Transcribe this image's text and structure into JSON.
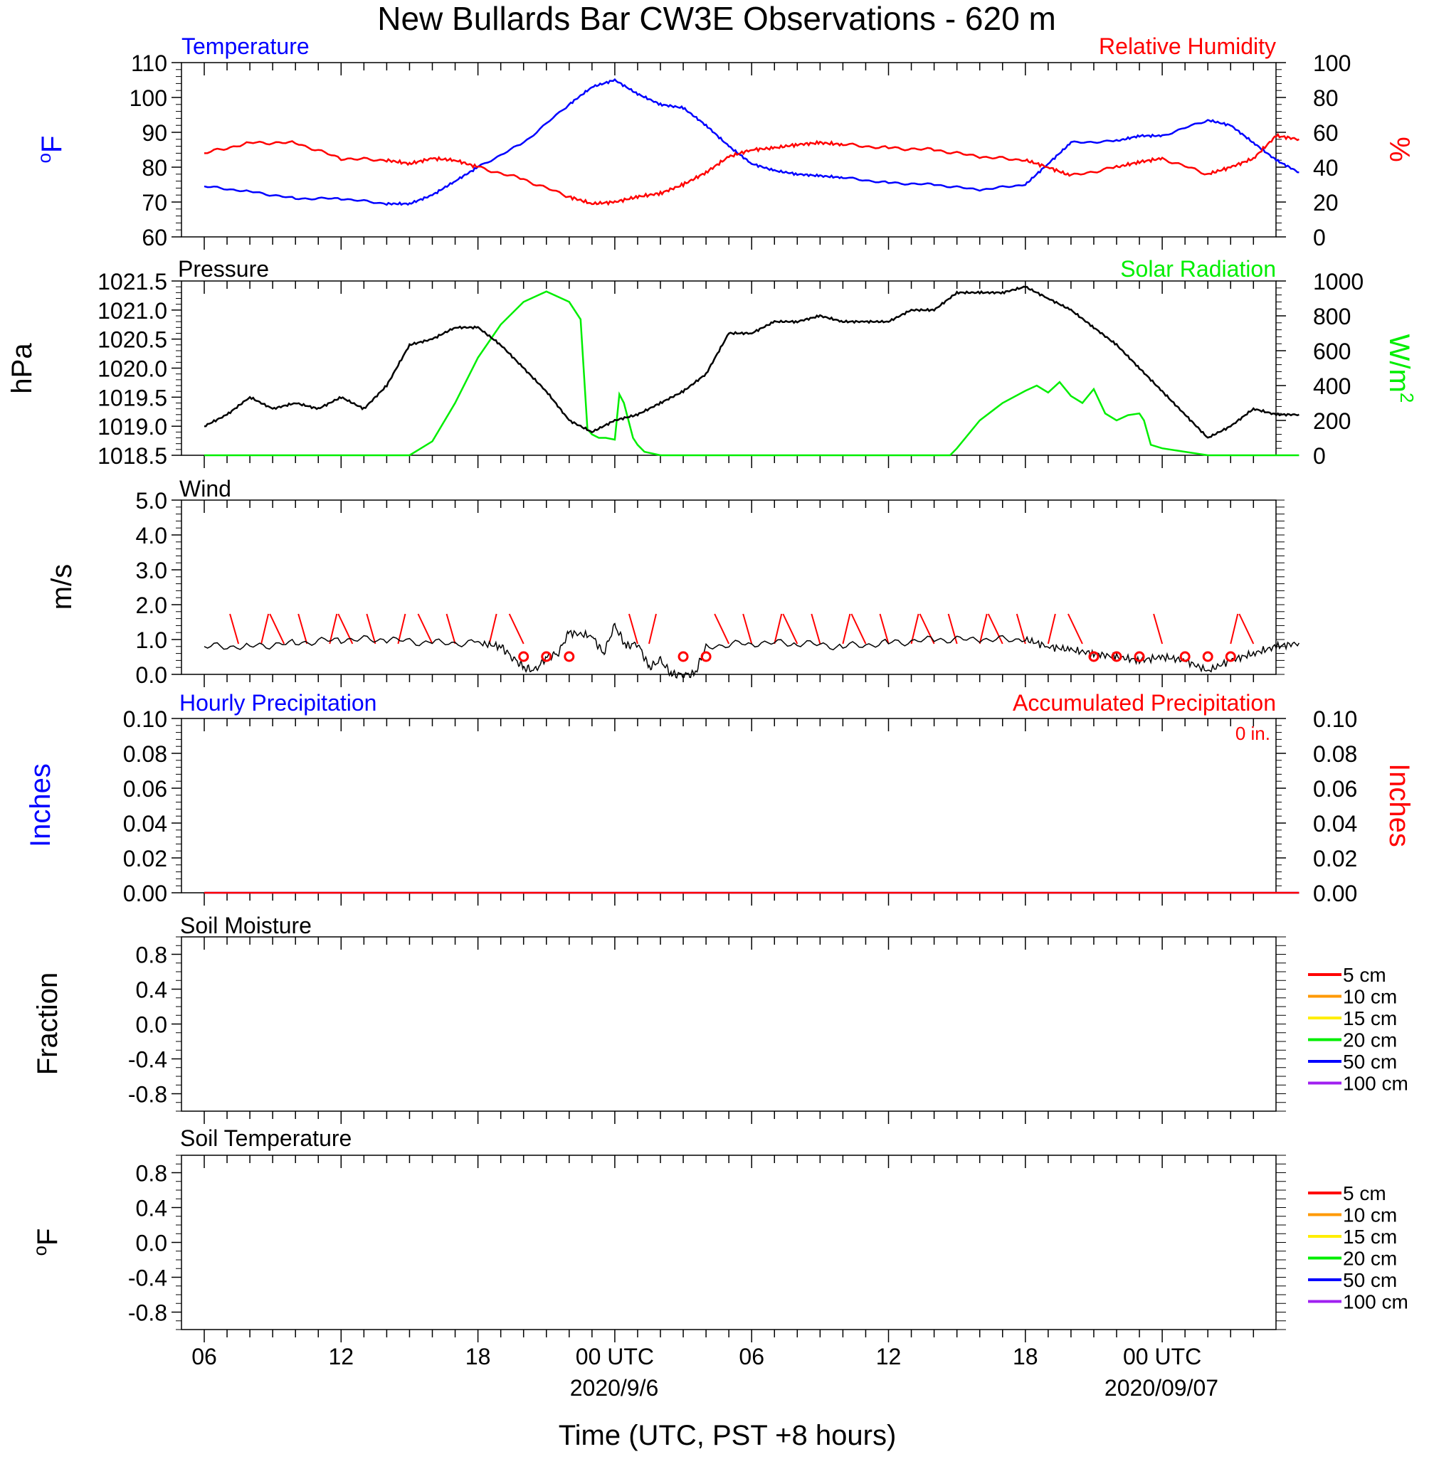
{
  "title": "New Bullards Bar CW3E Observations - 620 m",
  "x_axis": {
    "title": "Time (UTC, PST +8 hours)",
    "ticks": [
      "06",
      "12",
      "18",
      "00 UTC",
      "06",
      "12",
      "18",
      "00 UTC"
    ],
    "dates": [
      "2020/9/6",
      "2020/09/07"
    ]
  },
  "colors": {
    "blue": "#0000ff",
    "red": "#ff0000",
    "black": "#000000",
    "green": "#00ee00",
    "orange": "#ff9900",
    "yellow": "#ffee00",
    "purple": "#a020f0"
  },
  "chart_data": [
    {
      "type": "line",
      "panel": "temperature_rh",
      "left_title": "Temperature",
      "right_title": "Relative Humidity",
      "ylabel": "oF",
      "y2label": "%",
      "ylim": [
        60,
        110
      ],
      "y2lim": [
        0,
        100
      ],
      "y_ticks": [
        "110",
        "100",
        "90",
        "80",
        "70",
        "60"
      ],
      "y2_ticks": [
        "100",
        "80",
        "60",
        "40",
        "20",
        "0"
      ],
      "x_hours": [
        0,
        2,
        4,
        6,
        8,
        9,
        10,
        11,
        12,
        14,
        16,
        17,
        18,
        19,
        20,
        21,
        22,
        23,
        24,
        25,
        26,
        27,
        28,
        30,
        32,
        34,
        36,
        37,
        38,
        40,
        41,
        42,
        44,
        45,
        46,
        47,
        48
      ],
      "series": [
        {
          "name": "Temperature",
          "color": "#0000ff",
          "values": [
            74.5,
            73,
            71,
            71,
            69.5,
            69.5,
            72,
            76,
            80,
            87,
            98,
            103,
            105,
            101,
            98,
            97,
            92,
            86,
            81,
            79,
            78,
            77.5,
            77,
            75.5,
            75,
            73.5,
            75,
            81,
            87,
            87.5,
            89,
            89,
            93.5,
            92,
            87,
            82,
            78.5
          ]
        },
        {
          "name": "Relative Humidity",
          "color": "#ff0000",
          "values": [
            48,
            54,
            54,
            45,
            44,
            42,
            45,
            44,
            40,
            33,
            23,
            19,
            20,
            23,
            25,
            30,
            37,
            46,
            50,
            51,
            53,
            54,
            53,
            51,
            50,
            46,
            44,
            40,
            35,
            40,
            43,
            45,
            36,
            40,
            45,
            58,
            56
          ]
        }
      ]
    },
    {
      "type": "line",
      "panel": "pressure_solar",
      "left_title": "Pressure",
      "right_title": "Solar Radiation",
      "ylabel": "hPa",
      "y2label": "W/m2",
      "ylim": [
        1018.5,
        1021.5
      ],
      "y2lim": [
        0,
        1000
      ],
      "y_ticks": [
        "1021.5",
        "1021.0",
        "1020.5",
        "1020.0",
        "1019.5",
        "1019.0",
        "1018.5"
      ],
      "y2_ticks": [
        "1000",
        "800",
        "600",
        "400",
        "200",
        "0"
      ],
      "series": [
        {
          "name": "Pressure",
          "color": "#000000",
          "x_hours": [
            0,
            1,
            2,
            3,
            4,
            5,
            6,
            7,
            8,
            9,
            10,
            11,
            12,
            13,
            14,
            15,
            16,
            17,
            18,
            19,
            20,
            21,
            22,
            23,
            24,
            25,
            26,
            27,
            28,
            29,
            30,
            31,
            32,
            33,
            34,
            35,
            36,
            37,
            38,
            39,
            40,
            41,
            42,
            43,
            44,
            45,
            46,
            47,
            48
          ],
          "values": [
            1019.0,
            1019.2,
            1019.5,
            1019.3,
            1019.4,
            1019.3,
            1019.5,
            1019.3,
            1019.7,
            1020.4,
            1020.5,
            1020.7,
            1020.7,
            1020.4,
            1020.0,
            1019.6,
            1019.1,
            1018.9,
            1019.1,
            1019.2,
            1019.4,
            1019.6,
            1019.9,
            1020.6,
            1020.6,
            1020.8,
            1020.8,
            1020.9,
            1020.8,
            1020.8,
            1020.8,
            1021.0,
            1021.0,
            1021.3,
            1021.3,
            1021.3,
            1021.4,
            1021.2,
            1021.0,
            1020.7,
            1020.4,
            1020.0,
            1019.6,
            1019.2,
            1018.8,
            1019.0,
            1019.3,
            1019.2,
            1019.2
          ]
        },
        {
          "name": "Solar Radiation",
          "color": "#00ee00",
          "x_hours": [
            0,
            9,
            10,
            11,
            12,
            13,
            14,
            15,
            16,
            16.5,
            16.8,
            17.0,
            17.3,
            17.6,
            18.0,
            18.2,
            18.4,
            18.8,
            19.0,
            19.3,
            20.0,
            21.5,
            22,
            30,
            32.7,
            33,
            34,
            35,
            36,
            36.5,
            37,
            37.5,
            38,
            38.5,
            39,
            39.5,
            40,
            40.5,
            41,
            41.2,
            41.5,
            42,
            43,
            44,
            48
          ],
          "values": [
            0,
            0,
            80,
            300,
            560,
            750,
            880,
            940,
            880,
            780,
            150,
            120,
            100,
            100,
            90,
            350,
            300,
            100,
            60,
            20,
            0,
            0,
            0,
            0,
            0,
            40,
            200,
            300,
            370,
            400,
            360,
            420,
            340,
            300,
            380,
            240,
            200,
            230,
            240,
            200,
            60,
            40,
            20,
            0,
            0
          ]
        }
      ]
    },
    {
      "type": "line",
      "panel": "wind",
      "left_title": "Wind",
      "ylabel": "m/s",
      "ylim": [
        0,
        5
      ],
      "y_ticks": [
        "5.0",
        "4.0",
        "3.0",
        "2.0",
        "1.0",
        "0.0"
      ],
      "series": [
        {
          "name": "Wind",
          "color": "#000000",
          "x_hours": [
            0,
            2,
            4,
            6,
            8,
            10,
            12,
            13,
            13.5,
            14,
            14.5,
            15,
            15.5,
            16,
            17,
            17.5,
            18,
            18.5,
            19,
            19.5,
            20,
            20.5,
            21,
            21.5,
            22,
            24,
            26,
            28,
            30,
            32,
            34,
            36,
            37,
            38,
            39,
            40,
            41,
            42,
            43,
            44,
            45,
            46,
            47,
            48
          ],
          "values": [
            0.8,
            0.8,
            0.9,
            1.0,
            1.0,
            0.9,
            0.9,
            0.8,
            0.5,
            0.2,
            0.1,
            0.5,
            0.6,
            1.2,
            1.1,
            0.6,
            1.4,
            0.8,
            0.9,
            0.2,
            0.4,
            0.0,
            0.0,
            0.0,
            0.8,
            0.9,
            0.9,
            0.8,
            0.9,
            1.0,
            1.0,
            1.0,
            0.8,
            0.7,
            0.6,
            0.5,
            0.4,
            0.5,
            0.4,
            0.1,
            0.4,
            0.6,
            0.8,
            0.9
          ]
        }
      ],
      "barb_hours": [
        1.5,
        2.5,
        3.5,
        4.5,
        5.5,
        6.5,
        7.5,
        8.5,
        10,
        11,
        12.5,
        14,
        19,
        19.5,
        23,
        24,
        25,
        26,
        27,
        28,
        29,
        30,
        31,
        32,
        33,
        34,
        35,
        36,
        37,
        38.5,
        42,
        45,
        46
      ],
      "calm_hours": [
        14,
        15,
        16,
        21,
        22,
        39,
        40,
        41,
        43,
        44,
        45
      ]
    },
    {
      "type": "line",
      "panel": "precipitation",
      "left_title": "Hourly Precipitation",
      "right_title": "Accumulated Precipitation",
      "total_label": "0 in.",
      "ylabel": "Inches",
      "y2label": "Inches",
      "ylim": [
        0,
        0.1
      ],
      "y2lim": [
        0,
        0.1
      ],
      "y_ticks": [
        "0.10",
        "0.08",
        "0.06",
        "0.04",
        "0.02",
        "0.00"
      ],
      "y2_ticks": [
        "0.10",
        "0.08",
        "0.06",
        "0.04",
        "0.02",
        "0.00"
      ],
      "series": [
        {
          "name": "Hourly Precipitation",
          "color": "#0000ff",
          "x_hours": [
            0,
            48
          ],
          "values": [
            0,
            0
          ]
        },
        {
          "name": "Accumulated Precipitation",
          "color": "#ff0000",
          "x_hours": [
            0,
            48
          ],
          "values": [
            0,
            0
          ]
        }
      ]
    },
    {
      "type": "line",
      "panel": "soil_moisture",
      "left_title": "Soil Moisture",
      "ylabel": "Fraction",
      "ylim": [
        -1,
        1
      ],
      "y_ticks": [
        "0.8",
        "0.4",
        "0.0",
        "-0.4",
        "-0.8"
      ],
      "legend": [
        {
          "label": "5 cm",
          "color": "#ff0000"
        },
        {
          "label": "10 cm",
          "color": "#ff9900"
        },
        {
          "label": "15 cm",
          "color": "#ffee00"
        },
        {
          "label": "20 cm",
          "color": "#00ee00"
        },
        {
          "label": "50 cm",
          "color": "#0000ff"
        },
        {
          "label": "100 cm",
          "color": "#a020f0"
        }
      ],
      "series": []
    },
    {
      "type": "line",
      "panel": "soil_temperature",
      "left_title": "Soil Temperature",
      "ylabel": "oF",
      "ylim": [
        -1,
        1
      ],
      "y_ticks": [
        "0.8",
        "0.4",
        "0.0",
        "-0.4",
        "-0.8"
      ],
      "legend": [
        {
          "label": "5 cm",
          "color": "#ff0000"
        },
        {
          "label": "10 cm",
          "color": "#ff9900"
        },
        {
          "label": "15 cm",
          "color": "#ffee00"
        },
        {
          "label": "20 cm",
          "color": "#00ee00"
        },
        {
          "label": "50 cm",
          "color": "#0000ff"
        },
        {
          "label": "100 cm",
          "color": "#a020f0"
        }
      ],
      "series": []
    }
  ]
}
